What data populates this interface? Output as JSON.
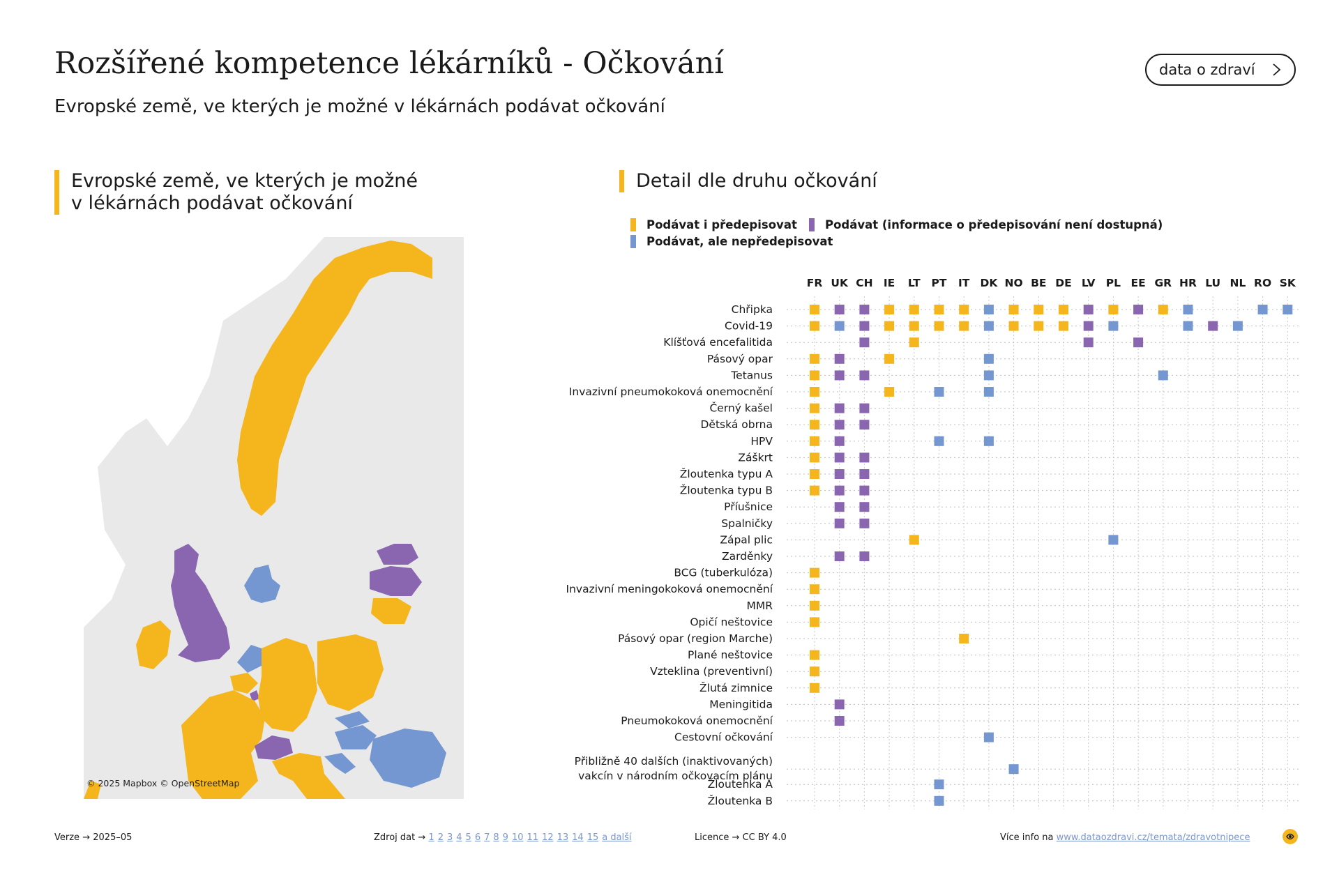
{
  "header": {
    "title": "Rozšířené kompetence lékárníků - Očkování",
    "subtitle": "Evropské země, ve kterých je možné v lékárnách podávat očkování",
    "data_button_label": "data o zdraví",
    "data_button_icon": "chevron-right-icon"
  },
  "map_section": {
    "heading_line1": "Evropské země, ve kterých je možné",
    "heading_line2": "v lékárnách podávat očkování",
    "credit": "© 2025 Mapbox © OpenStreetMap"
  },
  "detail_section": {
    "heading": "Detail dle druhu očkování"
  },
  "legend": [
    {
      "label": "Podávat i předepisovat",
      "color": "#f5b51c"
    },
    {
      "label": "Podávat (informace o předepisování není dostupná)",
      "color": "#8a66b0"
    },
    {
      "label": "Podávat, ale nepředepisovat",
      "color": "#7496d1"
    }
  ],
  "colors": {
    "prescribe": "#f5b51c",
    "administer_unknown": "#8a66b0",
    "administer_no_prescribe": "#7496d1",
    "land": "#e8e8e8",
    "accent": "#f5b51c"
  },
  "chart_data": {
    "type": "table",
    "legend_codes": {
      "Y": "Podávat i předepisovat",
      "P": "Podávat (informace o předepisování není dostupná)",
      "B": "Podávat, ale nepředepisovat"
    },
    "countries": [
      "FR",
      "UK",
      "CH",
      "IE",
      "LT",
      "PT",
      "IT",
      "DK",
      "NO",
      "BE",
      "DE",
      "LV",
      "PL",
      "EE",
      "GR",
      "HR",
      "LU",
      "NL",
      "RO",
      "SK"
    ],
    "rows": [
      {
        "label": "Chřipka",
        "cells": {
          "FR": "Y",
          "UK": "P",
          "CH": "P",
          "IE": "Y",
          "LT": "Y",
          "PT": "Y",
          "IT": "Y",
          "DK": "B",
          "NO": "Y",
          "BE": "Y",
          "DE": "Y",
          "LV": "P",
          "PL": "Y",
          "EE": "P",
          "GR": "Y",
          "HR": "B",
          "RO": "B",
          "SK": "B"
        }
      },
      {
        "label": "Covid-19",
        "cells": {
          "FR": "Y",
          "UK": "B",
          "CH": "P",
          "IE": "Y",
          "LT": "Y",
          "PT": "Y",
          "IT": "Y",
          "DK": "B",
          "NO": "Y",
          "BE": "Y",
          "DE": "Y",
          "LV": "P",
          "PL": "B",
          "HR": "B",
          "LU": "P",
          "NL": "B"
        }
      },
      {
        "label": "Klíšťová encefalitida",
        "cells": {
          "CH": "P",
          "LT": "Y",
          "LV": "P",
          "EE": "P"
        }
      },
      {
        "label": "Pásový opar",
        "cells": {
          "FR": "Y",
          "UK": "P",
          "IE": "Y",
          "DK": "B"
        }
      },
      {
        "label": "Tetanus",
        "cells": {
          "FR": "Y",
          "UK": "P",
          "CH": "P",
          "DK": "B",
          "GR": "B"
        }
      },
      {
        "label": "Invazivní pneumokoková onemocnění",
        "cells": {
          "FR": "Y",
          "IE": "Y",
          "PT": "B",
          "DK": "B"
        }
      },
      {
        "label": "Černý kašel",
        "cells": {
          "FR": "Y",
          "UK": "P",
          "CH": "P"
        }
      },
      {
        "label": "Dětská obrna",
        "cells": {
          "FR": "Y",
          "UK": "P",
          "CH": "P"
        }
      },
      {
        "label": "HPV",
        "cells": {
          "FR": "Y",
          "UK": "P",
          "PT": "B",
          "DK": "B"
        }
      },
      {
        "label": "Záškrt",
        "cells": {
          "FR": "Y",
          "UK": "P",
          "CH": "P"
        }
      },
      {
        "label": "Žloutenka typu A",
        "cells": {
          "FR": "Y",
          "UK": "P",
          "CH": "P"
        }
      },
      {
        "label": "Žloutenka typu B",
        "cells": {
          "FR": "Y",
          "UK": "P",
          "CH": "P"
        }
      },
      {
        "label": "Příušnice",
        "cells": {
          "UK": "P",
          "CH": "P"
        }
      },
      {
        "label": "Spalničky",
        "cells": {
          "UK": "P",
          "CH": "P"
        }
      },
      {
        "label": "Zápal plic",
        "cells": {
          "LT": "Y",
          "PL": "B"
        }
      },
      {
        "label": "Zarděnky",
        "cells": {
          "UK": "P",
          "CH": "P"
        }
      },
      {
        "label": "BCG (tuberkulóza)",
        "cells": {
          "FR": "Y"
        }
      },
      {
        "label": "Invazivní meningokoková onemocnění",
        "cells": {
          "FR": "Y"
        }
      },
      {
        "label": "MMR",
        "cells": {
          "FR": "Y"
        }
      },
      {
        "label": "Opičí neštovice",
        "cells": {
          "FR": "Y"
        }
      },
      {
        "label": "Pásový opar (region Marche)",
        "cells": {
          "IT": "Y"
        }
      },
      {
        "label": "Plané neštovice",
        "cells": {
          "FR": "Y"
        }
      },
      {
        "label": "Vzteklina (preventivní)",
        "cells": {
          "FR": "Y"
        }
      },
      {
        "label": "Žlutá zimnice",
        "cells": {
          "FR": "Y"
        }
      },
      {
        "label": "Meningitida",
        "cells": {
          "UK": "P"
        }
      },
      {
        "label": "Pneumokoková onemocnění",
        "cells": {
          "UK": "P"
        }
      },
      {
        "label": "Cestovní očkování",
        "cells": {
          "DK": "B"
        }
      },
      {
        "label": "Přibližně 40 dalších (inaktivovaných)\nvakcín v národním očkovacím plánu",
        "cells": {
          "NO": "B"
        }
      },
      {
        "label": "Žloutenka A",
        "cells": {
          "PT": "B"
        }
      },
      {
        "label": "Žloutenka B",
        "cells": {
          "PT": "B"
        }
      }
    ]
  },
  "footer": {
    "version_label": "Verze",
    "version_value": "2025–05",
    "source_label": "Zdroj dat",
    "sources": [
      "1",
      "2",
      "3",
      "4",
      "5",
      "6",
      "7",
      "8",
      "9",
      "10",
      "11",
      "12",
      "13",
      "14",
      "15",
      "a další"
    ],
    "license_label": "Licence",
    "license_value": "CC BY 4.0",
    "more_info_label": "Více info na",
    "more_info_link": "www.dataozdravi.cz/temata/zdravotnipece",
    "arrow": "→"
  }
}
